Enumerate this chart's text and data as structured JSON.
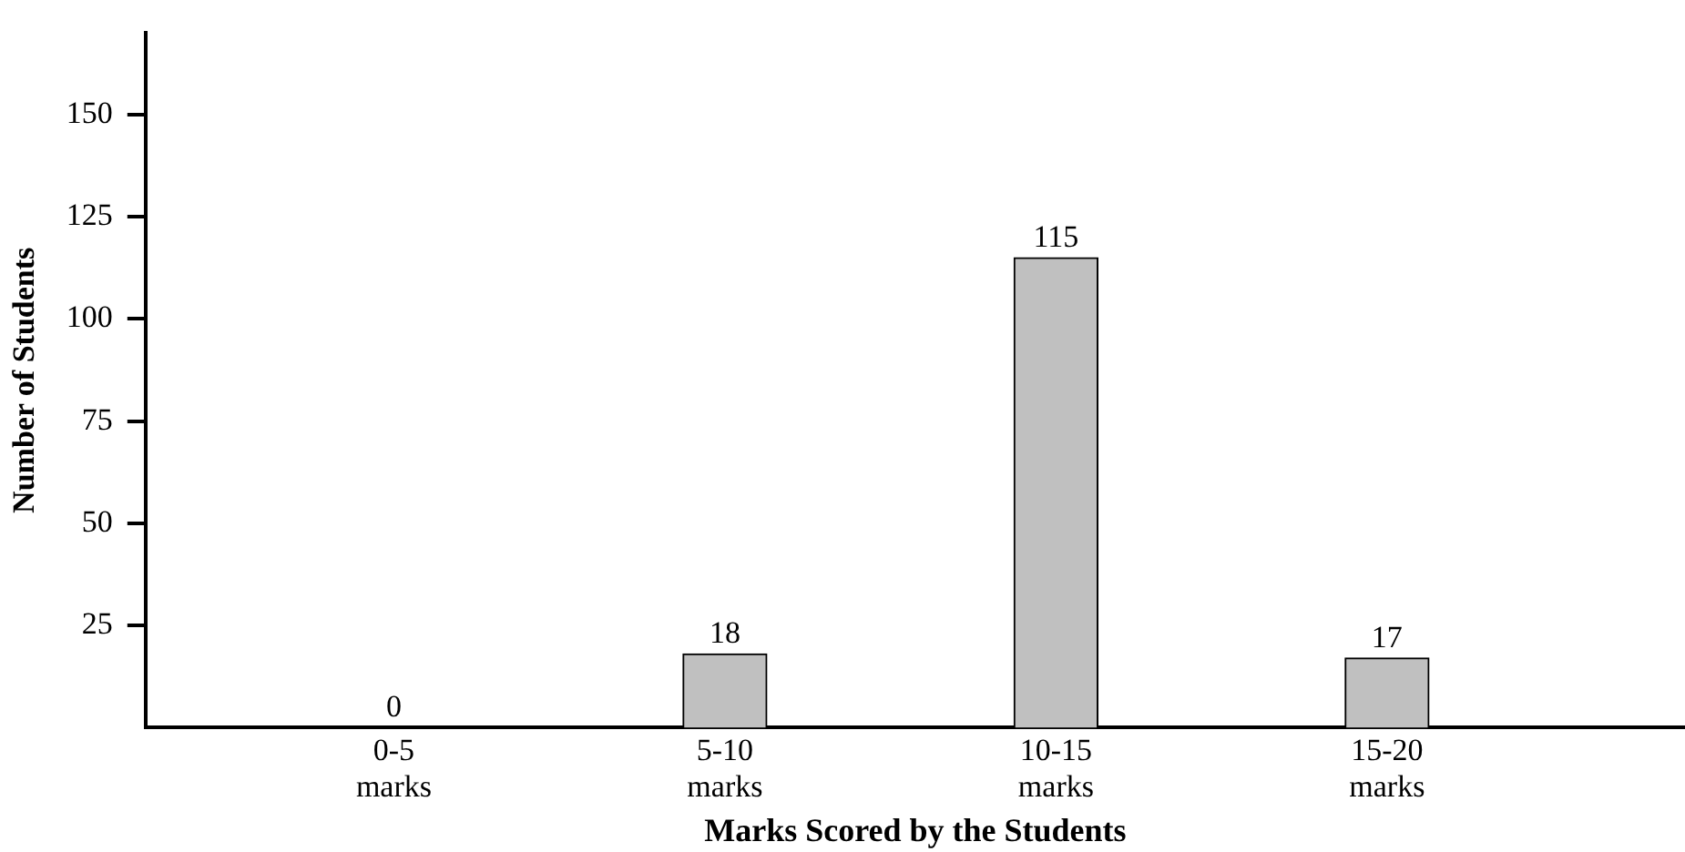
{
  "chart_data": {
    "type": "bar",
    "xlabel": "Marks Scored by the Students",
    "ylabel": "Number of Students",
    "categories": [
      "0-5 marks",
      "5-10 marks",
      "10-15 marks",
      "15-20 marks"
    ],
    "values": [
      0,
      18,
      115,
      17
    ],
    "color": "#c0c0c0",
    "ylim": [
      0,
      170
    ],
    "yticks": [
      25,
      50,
      75,
      100,
      125,
      150
    ],
    "grid": false,
    "data_labels": true
  }
}
